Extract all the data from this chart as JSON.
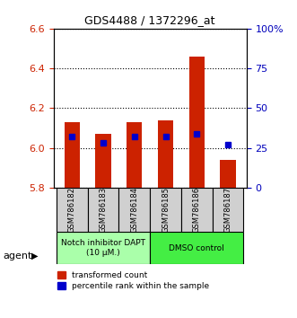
{
  "title": "GDS4488 / 1372296_at",
  "samples": [
    "GSM786182",
    "GSM786183",
    "GSM786184",
    "GSM786185",
    "GSM786186",
    "GSM786187"
  ],
  "red_values": [
    6.13,
    6.07,
    6.13,
    6.14,
    6.46,
    5.94
  ],
  "ylim_left": [
    5.8,
    6.6
  ],
  "ylim_right": [
    0,
    100
  ],
  "yticks_left": [
    5.8,
    6.0,
    6.2,
    6.4,
    6.6
  ],
  "yticks_right": [
    0,
    25,
    50,
    75,
    100
  ],
  "ytick_right_labels": [
    "0",
    "25",
    "50",
    "75",
    "100%"
  ],
  "bar_base": 5.8,
  "blue_pct": [
    32,
    28,
    32,
    32,
    34,
    27
  ],
  "groups": [
    {
      "label": "Notch inhibitor DAPT\n(10 μM.)",
      "color": "#aaffaa",
      "start": 0,
      "end": 3
    },
    {
      "label": "DMSO control",
      "color": "#44ee44",
      "start": 3,
      "end": 6
    }
  ],
  "agent_label": "agent",
  "legend_red": "transformed count",
  "legend_blue": "percentile rank within the sample",
  "bar_width": 0.5,
  "red_color": "#cc2200",
  "blue_color": "#0000cc",
  "tick_label_color_left": "#cc2200",
  "tick_label_color_right": "#0000bb"
}
